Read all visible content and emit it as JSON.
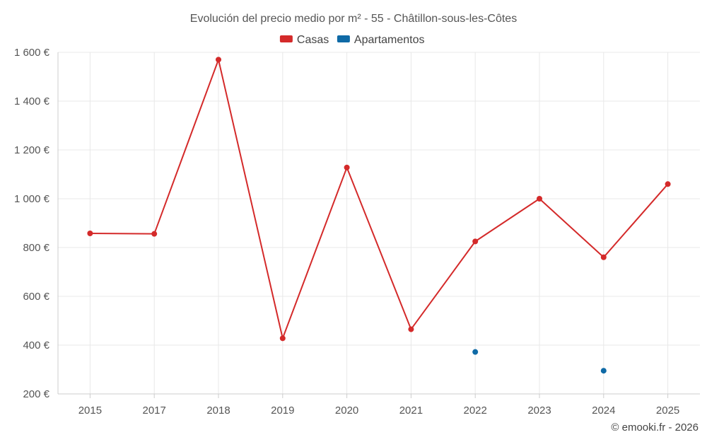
{
  "chart_data": {
    "type": "line",
    "title": "Evolución del precio medio por m² - 55 - Châtillon-sous-les-Côtes",
    "categories": [
      "2015",
      "2017",
      "2018",
      "2019",
      "2020",
      "2021",
      "2022",
      "2023",
      "2024",
      "2025"
    ],
    "series": [
      {
        "name": "Casas",
        "color": "#d42a2a",
        "values": [
          858,
          856,
          1570,
          428,
          1128,
          465,
          825,
          1000,
          760,
          1060
        ]
      },
      {
        "name": "Apartamentos",
        "color": "#0f6aa6",
        "values": [
          null,
          null,
          null,
          null,
          null,
          null,
          372,
          null,
          295,
          null
        ]
      }
    ],
    "ylim": [
      200,
      1600
    ],
    "yticks": [
      200,
      400,
      600,
      800,
      1000,
      1200,
      1400,
      1600
    ],
    "ytick_labels": [
      "200 €",
      "400 €",
      "600 €",
      "800 €",
      "1 000 €",
      "1 200 €",
      "1 400 €",
      "1 600 €"
    ],
    "grid": true,
    "legend": "top-center",
    "xlabel": "",
    "ylabel": ""
  },
  "credit": "© emooki.fr - 2026"
}
